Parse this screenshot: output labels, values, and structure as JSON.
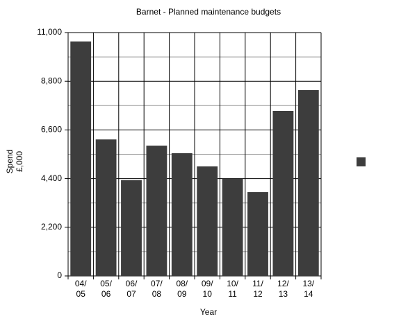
{
  "chart_data": {
    "type": "bar",
    "title": "Barnet - Planned maintenance budgets",
    "x_label": "Year",
    "y_label": [
      "Spend",
      "£,000"
    ],
    "categories": [
      [
        "04/",
        "05"
      ],
      [
        "05/",
        "06"
      ],
      [
        "06/",
        "07"
      ],
      [
        "07/",
        "08"
      ],
      [
        "08/",
        "09"
      ],
      [
        "09/",
        "10"
      ],
      [
        "10/",
        "11"
      ],
      [
        "11/",
        "12"
      ],
      [
        "12/",
        "13"
      ],
      [
        "13/",
        "14"
      ]
    ],
    "series": [
      {
        "name": null,
        "color": "#3d3d3d",
        "values": [
          10600,
          6170,
          4330,
          5890,
          5550,
          4950,
          4390,
          3790,
          7460,
          8400
        ]
      }
    ],
    "ylim": [
      0,
      11000
    ],
    "yticks": [
      0,
      {
        "value": 2200,
        "label": "2,200"
      },
      {
        "value": 4400,
        "label": "4,400"
      },
      {
        "value": 6600,
        "label": "6,600"
      },
      {
        "value": 8800,
        "label": "8,800"
      },
      {
        "value": 11000,
        "label": "11,000"
      }
    ],
    "yminorticks": [
      1100,
      3300,
      5500,
      7700,
      9900
    ],
    "grid": true,
    "legend": "right"
  }
}
